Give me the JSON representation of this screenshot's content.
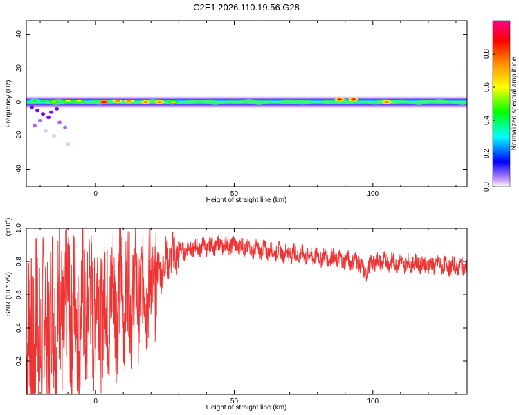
{
  "title": "C2E1.2026.110.19.56.G28",
  "chart_data": [
    {
      "type": "heatmap",
      "xlabel": "Height of straight line (km)",
      "ylabel": "Frequency (Hz)",
      "xlim": [
        -25,
        134
      ],
      "ylim": [
        -50,
        48
      ],
      "xticks": [
        "0",
        "50",
        "100"
      ],
      "xtick_values": [
        0,
        50,
        100
      ],
      "yticks": [
        "40",
        "20",
        "0",
        "-20",
        "-40"
      ],
      "ytick_values": [
        40,
        20,
        0,
        -20,
        -40
      ],
      "colorbar": {
        "label": "Normalized spectral amplitude",
        "ticks": [
          "0.0",
          "0.2",
          "0.4",
          "0.6",
          "0.8"
        ],
        "tick_values": [
          0.0,
          0.2,
          0.4,
          0.6,
          0.8
        ],
        "range": [
          0,
          1
        ],
        "colormap": [
          "#ffffff",
          "#7700ff",
          "#0000ff",
          "#00ffff",
          "#00ff00",
          "#ffff00",
          "#ff8800",
          "#ff0000",
          "#ff0088"
        ]
      },
      "band": {
        "center_hz": 0,
        "peaks": [
          {
            "x": -22,
            "y": 1,
            "amp": 0.45
          },
          {
            "x": -19,
            "y": 0.5,
            "amp": 0.55
          },
          {
            "x": -15,
            "y": 0.2,
            "amp": 0.6
          },
          {
            "x": -10,
            "y": 0.5,
            "amp": 0.65
          },
          {
            "x": -6,
            "y": 0.5,
            "amp": 0.7
          },
          {
            "x": 3,
            "y": 0,
            "amp": 0.95
          },
          {
            "x": 8,
            "y": 0.5,
            "amp": 0.8
          },
          {
            "x": 12,
            "y": 0.5,
            "amp": 0.75
          },
          {
            "x": 18,
            "y": 0,
            "amp": 0.8
          },
          {
            "x": 23,
            "y": 0,
            "amp": 0.75
          },
          {
            "x": 28,
            "y": 0,
            "amp": 0.7
          },
          {
            "x": 88,
            "y": 1.5,
            "amp": 0.9
          },
          {
            "x": 93,
            "y": 1.5,
            "amp": 0.92
          },
          {
            "x": 105,
            "y": 0,
            "amp": 0.75
          }
        ],
        "scatter_low": [
          {
            "x": -23,
            "y": -3
          },
          {
            "x": -21,
            "y": -5
          },
          {
            "x": -19,
            "y": -7
          },
          {
            "x": -17,
            "y": -9
          },
          {
            "x": -16,
            "y": -6
          },
          {
            "x": -14,
            "y": -4
          },
          {
            "x": -20,
            "y": -11
          },
          {
            "x": -13,
            "y": -12
          },
          {
            "x": -22,
            "y": -14
          },
          {
            "x": -18,
            "y": -17
          },
          {
            "x": -11,
            "y": -15
          },
          {
            "x": -15,
            "y": -20
          },
          {
            "x": -10,
            "y": -25
          }
        ]
      }
    },
    {
      "type": "line",
      "xlabel": "Height of straight line (km)",
      "ylabel": "SNR (10 * v/v)",
      "y_multiplier": "(x10",
      "y_multiplier_exp": "4",
      "xlim": [
        -25,
        134
      ],
      "ylim": [
        0,
        1.0
      ],
      "xticks": [
        "0",
        "50",
        "100"
      ],
      "xtick_values": [
        0,
        50,
        100
      ],
      "yticks": [
        "1.0",
        "0.8",
        "0.6",
        "0.4",
        "0.2"
      ],
      "ytick_values": [
        1.0,
        0.8,
        0.6,
        0.4,
        0.2
      ],
      "color": "#ee3333",
      "series": [
        {
          "x": [
            -25,
            -20,
            -15,
            -10,
            -5,
            0,
            5,
            10,
            15,
            20,
            25,
            30,
            35,
            40,
            45,
            50,
            55,
            60,
            65,
            70,
            75,
            80,
            85,
            90,
            95,
            97,
            100,
            105,
            110,
            115,
            120,
            125,
            130,
            134
          ],
          "values": [
            0.3,
            0.4,
            0.45,
            0.5,
            0.5,
            0.55,
            0.55,
            0.6,
            0.6,
            0.65,
            0.8,
            0.86,
            0.88,
            0.89,
            0.9,
            0.9,
            0.88,
            0.87,
            0.86,
            0.85,
            0.84,
            0.83,
            0.82,
            0.81,
            0.8,
            0.72,
            0.8,
            0.8,
            0.79,
            0.79,
            0.78,
            0.78,
            0.77,
            0.77
          ]
        }
      ]
    }
  ]
}
